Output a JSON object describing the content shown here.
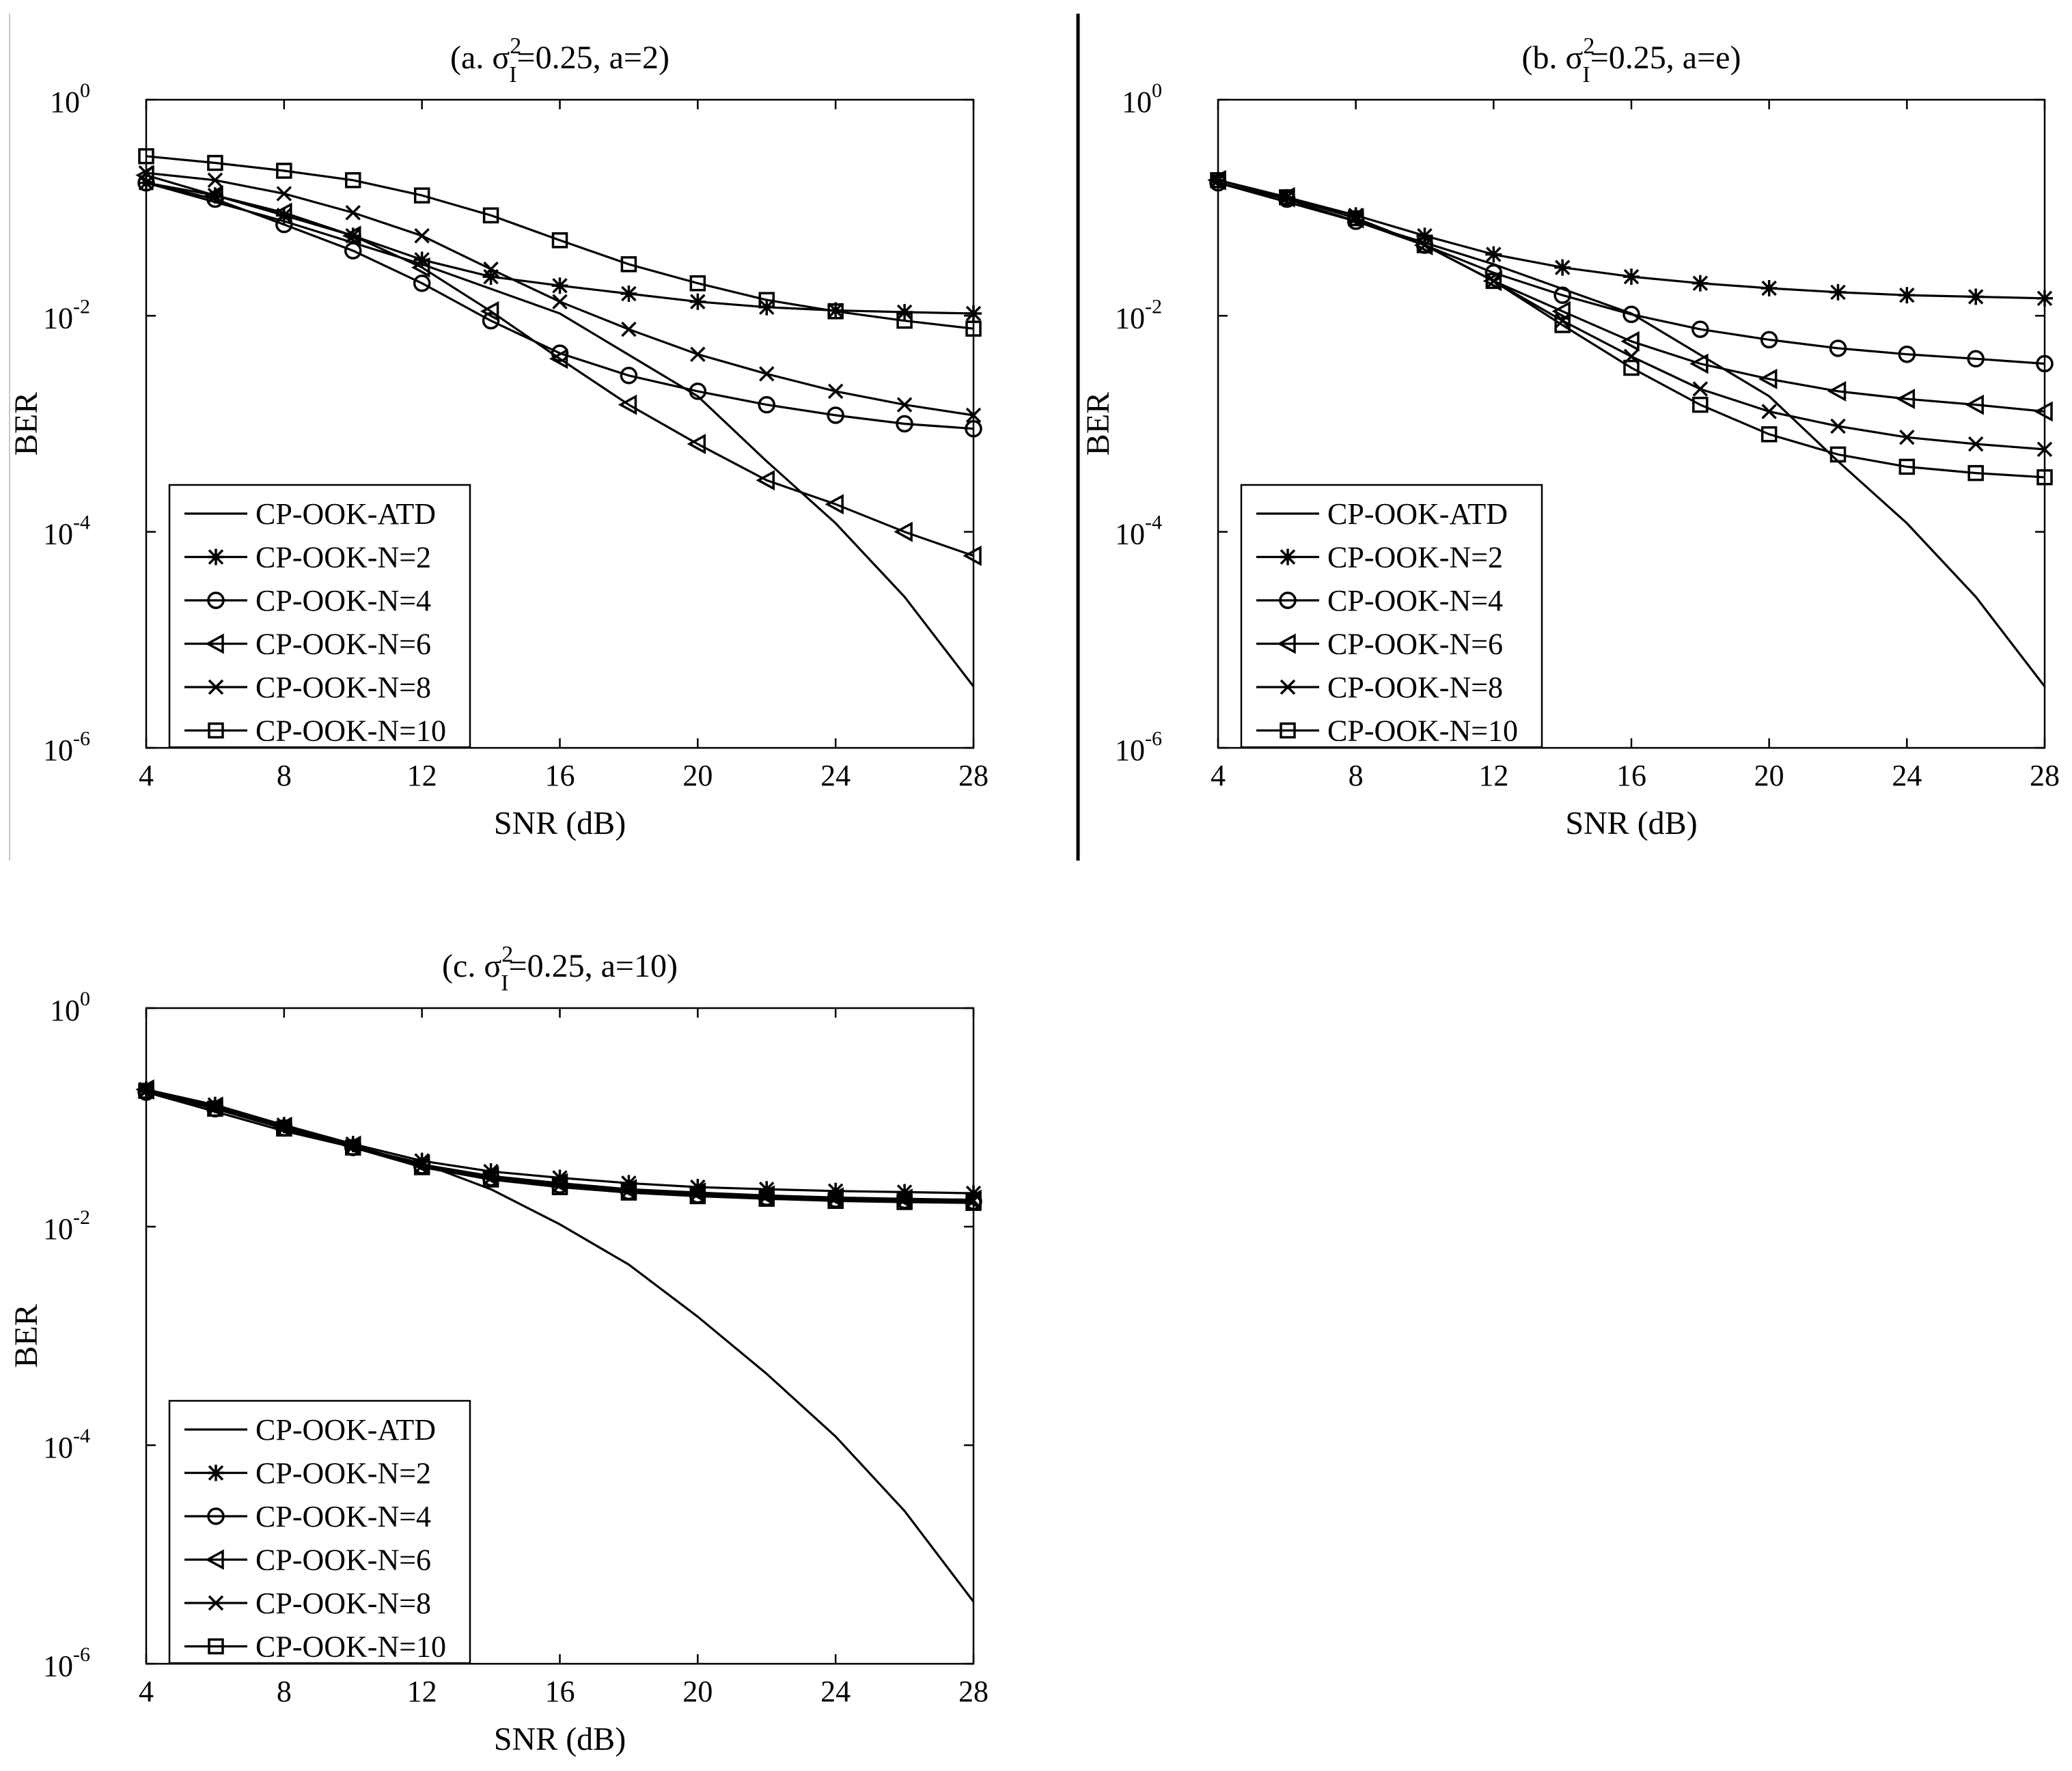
{
  "chart_data": [
    {
      "type": "line",
      "panel": "a",
      "title": "(a. σ_I^2=0.25, a=2)",
      "title_parts": {
        "prefix": "(a. σ",
        "sup": "2",
        "sub": "I",
        "suffix": "=0.25, a=2)"
      },
      "xlabel": "SNR (dB)",
      "ylabel": "BER",
      "xscale": "linear",
      "yscale": "log",
      "xlim": [
        4,
        28
      ],
      "ylim": [
        1e-06,
        1
      ],
      "xticks": [
        4,
        8,
        12,
        16,
        20,
        24,
        28
      ],
      "yticks": [
        {
          "base": "10",
          "exp": "0"
        },
        {
          "base": "10",
          "exp": "-2"
        },
        {
          "base": "10",
          "exp": "-4"
        },
        {
          "base": "10",
          "exp": "-6"
        }
      ],
      "legend_position": "lower-left",
      "series": [
        {
          "name": "CP-OOK-ATD",
          "marker": "none",
          "x": [
            4,
            8,
            12,
            16,
            20,
            22,
            24,
            26,
            28
          ],
          "values": [
            0.17,
            0.075,
            0.03,
            0.0105,
            0.0018,
            0.00045,
            0.00012,
            2.5e-05,
            3.7e-06
          ]
        },
        {
          "name": "CP-OOK-N=2",
          "marker": "star",
          "x": [
            4,
            6,
            8,
            10,
            12,
            14,
            16,
            18,
            20,
            22,
            24,
            26,
            28
          ],
          "values": [
            0.17,
            0.13,
            0.085,
            0.055,
            0.033,
            0.023,
            0.019,
            0.016,
            0.0135,
            0.012,
            0.0112,
            0.0108,
            0.0105
          ]
        },
        {
          "name": "CP-OOK-N=4",
          "marker": "circle",
          "x": [
            4,
            6,
            8,
            10,
            12,
            14,
            16,
            18,
            20,
            22,
            24,
            26,
            28
          ],
          "values": [
            0.17,
            0.12,
            0.07,
            0.04,
            0.02,
            0.009,
            0.0045,
            0.0028,
            0.002,
            0.0015,
            0.0012,
            0.001,
            0.0009
          ]
        },
        {
          "name": "CP-OOK-N=6",
          "marker": "triangle-left",
          "x": [
            4,
            6,
            8,
            10,
            12,
            14,
            16,
            18,
            20,
            22,
            24,
            26,
            28
          ],
          "values": [
            0.2,
            0.13,
            0.09,
            0.055,
            0.028,
            0.011,
            0.004,
            0.0015,
            0.00065,
            0.0003,
            0.00018,
            0.0001,
            6e-05
          ]
        },
        {
          "name": "CP-OOK-N=8",
          "marker": "x",
          "x": [
            4,
            6,
            8,
            10,
            12,
            14,
            16,
            18,
            20,
            22,
            24,
            26,
            28
          ],
          "values": [
            0.21,
            0.18,
            0.135,
            0.09,
            0.055,
            0.027,
            0.0135,
            0.0075,
            0.0044,
            0.0029,
            0.002,
            0.0015,
            0.0012
          ]
        },
        {
          "name": "CP-OOK-N=10",
          "marker": "square",
          "x": [
            4,
            6,
            8,
            10,
            12,
            14,
            16,
            18,
            20,
            22,
            24,
            26,
            28
          ],
          "values": [
            0.3,
            0.26,
            0.22,
            0.18,
            0.13,
            0.085,
            0.05,
            0.03,
            0.02,
            0.014,
            0.011,
            0.009,
            0.0076
          ]
        }
      ]
    },
    {
      "type": "line",
      "panel": "b",
      "title": "(b. σ_I^2=0.25, a=e)",
      "title_parts": {
        "prefix": "(b. σ",
        "sup": "2",
        "sub": "I",
        "suffix": "=0.25, a=e)"
      },
      "xlabel": "SNR (dB)",
      "ylabel": "BER",
      "xscale": "linear",
      "yscale": "log",
      "xlim": [
        4,
        28
      ],
      "ylim": [
        1e-06,
        1
      ],
      "xticks": [
        4,
        8,
        12,
        16,
        20,
        24,
        28
      ],
      "yticks": [
        {
          "base": "10",
          "exp": "0"
        },
        {
          "base": "10",
          "exp": "-2"
        },
        {
          "base": "10",
          "exp": "-4"
        },
        {
          "base": "10",
          "exp": "-6"
        }
      ],
      "legend_position": "lower-left",
      "series": [
        {
          "name": "CP-OOK-ATD",
          "marker": "none",
          "x": [
            4,
            8,
            12,
            16,
            20,
            22,
            24,
            26,
            28
          ],
          "values": [
            0.17,
            0.075,
            0.03,
            0.0105,
            0.0018,
            0.00045,
            0.00012,
            2.5e-05,
            3.7e-06
          ]
        },
        {
          "name": "CP-OOK-N=2",
          "marker": "star",
          "x": [
            4,
            6,
            8,
            10,
            12,
            14,
            16,
            18,
            20,
            22,
            24,
            26,
            28
          ],
          "values": [
            0.18,
            0.125,
            0.085,
            0.055,
            0.037,
            0.028,
            0.023,
            0.02,
            0.018,
            0.0165,
            0.0155,
            0.015,
            0.0145
          ]
        },
        {
          "name": "CP-OOK-N=4",
          "marker": "circle",
          "x": [
            4,
            6,
            8,
            10,
            12,
            14,
            16,
            18,
            20,
            22,
            24,
            26,
            28
          ],
          "values": [
            0.17,
            0.12,
            0.075,
            0.045,
            0.025,
            0.0155,
            0.0103,
            0.0075,
            0.006,
            0.005,
            0.0044,
            0.004,
            0.0036
          ]
        },
        {
          "name": "CP-OOK-N=6",
          "marker": "triangle-left",
          "x": [
            4,
            6,
            8,
            10,
            12,
            14,
            16,
            18,
            20,
            22,
            24,
            26,
            28
          ],
          "values": [
            0.18,
            0.125,
            0.08,
            0.045,
            0.021,
            0.011,
            0.0058,
            0.0036,
            0.0026,
            0.002,
            0.0017,
            0.0015,
            0.0013
          ]
        },
        {
          "name": "CP-OOK-N=8",
          "marker": "x",
          "x": [
            4,
            6,
            8,
            10,
            12,
            14,
            16,
            18,
            20,
            22,
            24,
            26,
            28
          ],
          "values": [
            0.18,
            0.125,
            0.08,
            0.045,
            0.021,
            0.009,
            0.0042,
            0.0021,
            0.0013,
            0.00095,
            0.00075,
            0.00065,
            0.00058
          ]
        },
        {
          "name": "CP-OOK-N=10",
          "marker": "square",
          "x": [
            4,
            6,
            8,
            10,
            12,
            14,
            16,
            18,
            20,
            22,
            24,
            26,
            28
          ],
          "values": [
            0.18,
            0.125,
            0.08,
            0.045,
            0.021,
            0.0082,
            0.0033,
            0.0015,
            0.0008,
            0.00052,
            0.0004,
            0.00035,
            0.00032
          ]
        }
      ]
    },
    {
      "type": "line",
      "panel": "c",
      "title": "(c. σ_I^2=0.25, a=10)",
      "title_parts": {
        "prefix": "(c. σ",
        "sup": "2",
        "sub": "I",
        "suffix": "=0.25, a=10)"
      },
      "xlabel": "SNR (dB)",
      "ylabel": "BER",
      "xscale": "linear",
      "yscale": "log",
      "xlim": [
        4,
        28
      ],
      "ylim": [
        1e-06,
        1
      ],
      "xticks": [
        4,
        8,
        12,
        16,
        20,
        24,
        28
      ],
      "yticks": [
        {
          "base": "10",
          "exp": "0"
        },
        {
          "base": "10",
          "exp": "-2"
        },
        {
          "base": "10",
          "exp": "-4"
        },
        {
          "base": "10",
          "exp": "-6"
        }
      ],
      "legend_position": "lower-left",
      "series": [
        {
          "name": "CP-OOK-ATD",
          "marker": "none",
          "x": [
            4,
            8,
            12,
            14,
            16,
            18,
            20,
            22,
            24,
            26,
            28
          ],
          "values": [
            0.17,
            0.075,
            0.038,
            0.022,
            0.0105,
            0.0045,
            0.0015,
            0.00045,
            0.00012,
            2.5e-05,
            3.7e-06
          ]
        },
        {
          "name": "CP-OOK-N=2",
          "marker": "star",
          "x": [
            4,
            6,
            8,
            10,
            12,
            14,
            16,
            18,
            20,
            22,
            24,
            26,
            28
          ],
          "values": [
            0.18,
            0.13,
            0.085,
            0.057,
            0.04,
            0.032,
            0.028,
            0.025,
            0.023,
            0.022,
            0.0212,
            0.0207,
            0.0202
          ]
        },
        {
          "name": "CP-OOK-N=4",
          "marker": "circle",
          "x": [
            4,
            6,
            8,
            10,
            12,
            14,
            16,
            18,
            20,
            22,
            24,
            26,
            28
          ],
          "values": [
            0.17,
            0.12,
            0.08,
            0.053,
            0.036,
            0.028,
            0.024,
            0.021,
            0.0195,
            0.0185,
            0.0178,
            0.0174,
            0.017
          ]
        },
        {
          "name": "CP-OOK-N=6",
          "marker": "triangle-left",
          "x": [
            4,
            6,
            8,
            10,
            12,
            14,
            16,
            18,
            20,
            22,
            24,
            26,
            28
          ],
          "values": [
            0.18,
            0.125,
            0.082,
            0.055,
            0.037,
            0.029,
            0.025,
            0.022,
            0.0205,
            0.0193,
            0.0185,
            0.018,
            0.0176
          ]
        },
        {
          "name": "CP-OOK-N=8",
          "marker": "x",
          "x": [
            4,
            6,
            8,
            10,
            12,
            14,
            16,
            18,
            20,
            22,
            24,
            26,
            28
          ],
          "values": [
            0.175,
            0.122,
            0.08,
            0.054,
            0.036,
            0.028,
            0.024,
            0.0215,
            0.02,
            0.019,
            0.0182,
            0.0177,
            0.0173
          ]
        },
        {
          "name": "CP-OOK-N=10",
          "marker": "square",
          "x": [
            4,
            6,
            8,
            10,
            12,
            14,
            16,
            18,
            20,
            22,
            24,
            26,
            28
          ],
          "values": [
            0.175,
            0.12,
            0.079,
            0.053,
            0.035,
            0.027,
            0.023,
            0.0205,
            0.019,
            0.018,
            0.0172,
            0.0168,
            0.0165
          ]
        }
      ]
    }
  ]
}
